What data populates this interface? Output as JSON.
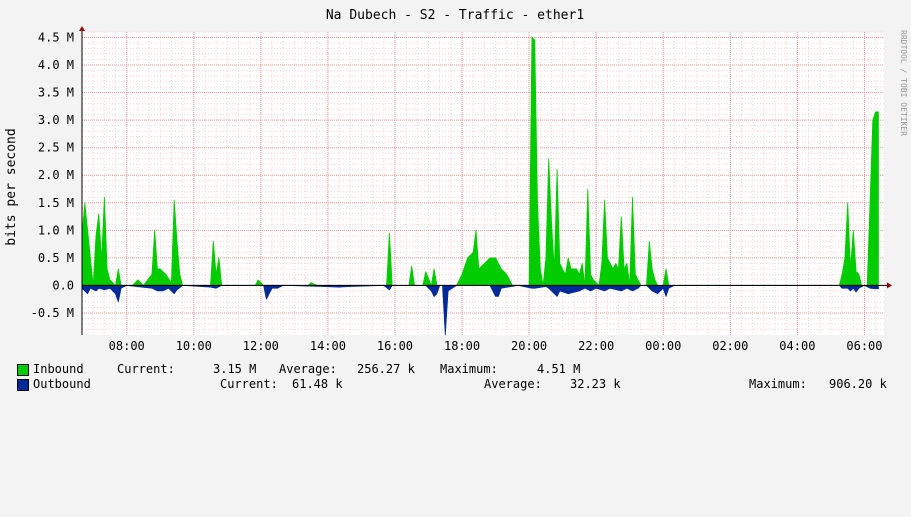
{
  "chart_data": {
    "type": "area",
    "title": "Na Dubech - S2 - Traffic - ether1",
    "ylabel": "bits per second",
    "watermark": "RRDTOOL / TOBI OETIKER",
    "x_ticks": [
      "08:00",
      "10:00",
      "12:00",
      "14:00",
      "16:00",
      "18:00",
      "20:00",
      "22:00",
      "00:00",
      "02:00",
      "04:00",
      "06:00"
    ],
    "x_start": "06:40",
    "x_end": "06:35",
    "y_ticks": [
      {
        "v": 4.5,
        "label": "4.5 M"
      },
      {
        "v": 4.0,
        "label": "4.0 M"
      },
      {
        "v": 3.5,
        "label": "3.5 M"
      },
      {
        "v": 3.0,
        "label": "3.0 M"
      },
      {
        "v": 2.5,
        "label": "2.5 M"
      },
      {
        "v": 2.0,
        "label": "2.0 M"
      },
      {
        "v": 1.5,
        "label": "1.5 M"
      },
      {
        "v": 1.0,
        "label": "1.0 M"
      },
      {
        "v": 0.5,
        "label": "0.5 M"
      },
      {
        "v": 0.0,
        "label": "0.0"
      },
      {
        "v": -0.5,
        "label": "-0.5 M"
      }
    ],
    "ylim": [
      -0.9,
      4.6
    ],
    "y_unit": "M",
    "grid": true,
    "series": [
      {
        "name": "Inbound",
        "color": "#00cc00",
        "points": [
          [
            "06:40",
            0.9
          ],
          [
            "06:45",
            1.5
          ],
          [
            "06:50",
            1.0
          ],
          [
            "06:55",
            0.5
          ],
          [
            "07:00",
            0.0
          ],
          [
            "07:05",
            0.9
          ],
          [
            "07:10",
            1.3
          ],
          [
            "07:15",
            0.45
          ],
          [
            "07:20",
            1.6
          ],
          [
            "07:25",
            0.3
          ],
          [
            "07:30",
            0.1
          ],
          [
            "07:35",
            0.05
          ],
          [
            "07:40",
            0.0
          ],
          [
            "07:45",
            0.3
          ],
          [
            "07:50",
            0.0
          ],
          [
            "08:10",
            0.0
          ],
          [
            "08:20",
            0.1
          ],
          [
            "08:30",
            0.0
          ],
          [
            "08:45",
            0.2
          ],
          [
            "08:50",
            1.0
          ],
          [
            "08:55",
            0.3
          ],
          [
            "09:00",
            0.3
          ],
          [
            "09:10",
            0.2
          ],
          [
            "09:20",
            0.05
          ],
          [
            "09:25",
            1.55
          ],
          [
            "09:30",
            0.8
          ],
          [
            "09:35",
            0.2
          ],
          [
            "09:40",
            0.0
          ],
          [
            "10:30",
            0.0
          ],
          [
            "10:35",
            0.8
          ],
          [
            "10:40",
            0.2
          ],
          [
            "10:45",
            0.5
          ],
          [
            "10:50",
            0.0
          ],
          [
            "11:50",
            0.0
          ],
          [
            "11:55",
            0.1
          ],
          [
            "12:05",
            0.0
          ],
          [
            "13:25",
            0.0
          ],
          [
            "13:30",
            0.05
          ],
          [
            "13:40",
            0.0
          ],
          [
            "15:45",
            0.0
          ],
          [
            "15:50",
            0.95
          ],
          [
            "15:55",
            0.0
          ],
          [
            "16:25",
            0.0
          ],
          [
            "16:30",
            0.35
          ],
          [
            "16:35",
            0.0
          ],
          [
            "16:50",
            0.0
          ],
          [
            "16:55",
            0.25
          ],
          [
            "17:05",
            0.0
          ],
          [
            "17:10",
            0.3
          ],
          [
            "17:15",
            0.0
          ],
          [
            "17:50",
            0.0
          ],
          [
            "18:00",
            0.2
          ],
          [
            "18:10",
            0.5
          ],
          [
            "18:20",
            0.6
          ],
          [
            "18:25",
            1.0
          ],
          [
            "18:30",
            0.3
          ],
          [
            "18:40",
            0.4
          ],
          [
            "18:50",
            0.5
          ],
          [
            "19:00",
            0.5
          ],
          [
            "19:10",
            0.3
          ],
          [
            "19:20",
            0.2
          ],
          [
            "19:30",
            0.0
          ],
          [
            "20:00",
            0.0
          ],
          [
            "20:05",
            4.51
          ],
          [
            "20:10",
            4.45
          ],
          [
            "20:15",
            1.5
          ],
          [
            "20:20",
            0.3
          ],
          [
            "20:25",
            0.0
          ],
          [
            "20:30",
            0.5
          ],
          [
            "20:35",
            2.3
          ],
          [
            "20:40",
            1.15
          ],
          [
            "20:45",
            0.3
          ],
          [
            "20:50",
            2.1
          ],
          [
            "20:55",
            0.4
          ],
          [
            "21:00",
            0.3
          ],
          [
            "21:05",
            0.2
          ],
          [
            "21:10",
            0.5
          ],
          [
            "21:15",
            0.3
          ],
          [
            "21:20",
            0.3
          ],
          [
            "21:25",
            0.3
          ],
          [
            "21:30",
            0.2
          ],
          [
            "21:35",
            0.4
          ],
          [
            "21:40",
            0.0
          ],
          [
            "21:45",
            1.75
          ],
          [
            "21:50",
            0.2
          ],
          [
            "21:55",
            0.1
          ],
          [
            "22:05",
            0.0
          ],
          [
            "22:10",
            0.4
          ],
          [
            "22:15",
            1.55
          ],
          [
            "22:20",
            0.5
          ],
          [
            "22:25",
            0.4
          ],
          [
            "22:30",
            0.3
          ],
          [
            "22:35",
            0.4
          ],
          [
            "22:40",
            0.3
          ],
          [
            "22:45",
            1.25
          ],
          [
            "22:50",
            0.3
          ],
          [
            "22:55",
            0.4
          ],
          [
            "23:00",
            0.0
          ],
          [
            "23:05",
            1.6
          ],
          [
            "23:10",
            0.2
          ],
          [
            "23:15",
            0.1
          ],
          [
            "23:20",
            0.0
          ],
          [
            "23:30",
            0.0
          ],
          [
            "23:35",
            0.8
          ],
          [
            "23:40",
            0.3
          ],
          [
            "23:45",
            0.1
          ],
          [
            "23:50",
            0.0
          ],
          [
            "00:00",
            0.0
          ],
          [
            "00:05",
            0.3
          ],
          [
            "00:10",
            0.0
          ],
          [
            "05:15",
            0.0
          ],
          [
            "05:20",
            0.2
          ],
          [
            "05:25",
            0.5
          ],
          [
            "05:30",
            1.5
          ],
          [
            "05:35",
            0.3
          ],
          [
            "05:40",
            1.0
          ],
          [
            "05:45",
            0.25
          ],
          [
            "05:50",
            0.2
          ],
          [
            "05:55",
            0.0
          ],
          [
            "06:05",
            0.0
          ],
          [
            "06:10",
            1.5
          ],
          [
            "06:15",
            3.0
          ],
          [
            "06:20",
            3.15
          ],
          [
            "06:25",
            3.15
          ]
        ]
      },
      {
        "name": "Outbound",
        "color": "#002a97",
        "points": [
          [
            "06:40",
            -0.05
          ],
          [
            "06:45",
            -0.1
          ],
          [
            "06:50",
            -0.15
          ],
          [
            "06:55",
            -0.05
          ],
          [
            "07:05",
            -0.1
          ],
          [
            "07:10",
            -0.05
          ],
          [
            "07:20",
            -0.08
          ],
          [
            "07:30",
            -0.05
          ],
          [
            "07:40",
            -0.15
          ],
          [
            "07:45",
            -0.3
          ],
          [
            "07:50",
            -0.05
          ],
          [
            "08:00",
            0.0
          ],
          [
            "08:45",
            -0.05
          ],
          [
            "08:55",
            -0.1
          ],
          [
            "09:05",
            -0.1
          ],
          [
            "09:15",
            -0.05
          ],
          [
            "09:25",
            -0.15
          ],
          [
            "09:30",
            -0.08
          ],
          [
            "09:40",
            0.0
          ],
          [
            "10:30",
            -0.03
          ],
          [
            "10:40",
            -0.05
          ],
          [
            "10:50",
            0.0
          ],
          [
            "12:05",
            0.0
          ],
          [
            "12:10",
            -0.25
          ],
          [
            "12:15",
            -0.15
          ],
          [
            "12:20",
            -0.05
          ],
          [
            "12:30",
            -0.05
          ],
          [
            "12:40",
            0.0
          ],
          [
            "13:50",
            -0.02
          ],
          [
            "14:20",
            -0.03
          ],
          [
            "14:40",
            -0.02
          ],
          [
            "15:40",
            0.0
          ],
          [
            "15:50",
            -0.08
          ],
          [
            "15:55",
            0.0
          ],
          [
            "16:55",
            0.0
          ],
          [
            "17:05",
            -0.1
          ],
          [
            "17:10",
            -0.2
          ],
          [
            "17:15",
            -0.15
          ],
          [
            "17:20",
            0.0
          ],
          [
            "17:25",
            0.0
          ],
          [
            "17:30",
            -0.9
          ],
          [
            "17:35",
            -0.1
          ],
          [
            "17:50",
            0.0
          ],
          [
            "18:50",
            0.0
          ],
          [
            "19:00",
            -0.2
          ],
          [
            "19:05",
            -0.2
          ],
          [
            "19:10",
            -0.05
          ],
          [
            "19:40",
            0.0
          ],
          [
            "20:05",
            -0.05
          ],
          [
            "20:10",
            -0.05
          ],
          [
            "20:30",
            -0.02
          ],
          [
            "20:35",
            -0.05
          ],
          [
            "20:40",
            -0.1
          ],
          [
            "20:50",
            -0.2
          ],
          [
            "20:55",
            -0.1
          ],
          [
            "21:10",
            -0.15
          ],
          [
            "21:30",
            -0.1
          ],
          [
            "21:40",
            -0.05
          ],
          [
            "21:50",
            -0.1
          ],
          [
            "22:00",
            -0.05
          ],
          [
            "22:15",
            -0.1
          ],
          [
            "22:25",
            -0.05
          ],
          [
            "22:45",
            -0.1
          ],
          [
            "22:55",
            -0.05
          ],
          [
            "23:05",
            -0.1
          ],
          [
            "23:15",
            -0.05
          ],
          [
            "23:20",
            0.0
          ],
          [
            "23:30",
            0.0
          ],
          [
            "23:40",
            -0.1
          ],
          [
            "23:50",
            -0.15
          ],
          [
            "23:55",
            -0.1
          ],
          [
            "00:00",
            -0.05
          ],
          [
            "00:05",
            -0.2
          ],
          [
            "00:10",
            -0.05
          ],
          [
            "00:20",
            0.0
          ],
          [
            "05:15",
            0.0
          ],
          [
            "05:20",
            -0.05
          ],
          [
            "05:30",
            -0.05
          ],
          [
            "05:35",
            -0.1
          ],
          [
            "05:40",
            -0.05
          ],
          [
            "05:45",
            -0.12
          ],
          [
            "05:50",
            -0.05
          ],
          [
            "06:00",
            0.0
          ],
          [
            "06:10",
            -0.05
          ],
          [
            "06:20",
            -0.06
          ],
          [
            "06:25",
            -0.06
          ]
        ]
      }
    ]
  },
  "legend": {
    "inbound": {
      "name": "Inbound",
      "current_label": "Current:",
      "current": "3.15 M",
      "average_label": "Average:",
      "average": "256.27 k",
      "maximum_label": "Maximum:",
      "maximum": "4.51 M"
    },
    "outbound": {
      "name": "Outbound",
      "current_label": "Current:",
      "current": "61.48 k",
      "average_label": "Average:",
      "average": "32.23 k",
      "maximum_label": "Maximum:",
      "maximum": "906.20 k"
    }
  }
}
